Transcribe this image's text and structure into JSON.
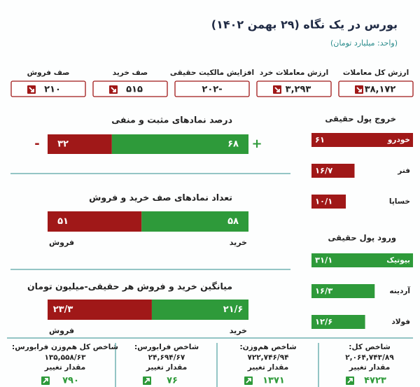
{
  "header": {
    "title": "بورس در یک نگاه (۲۹ بهمن ۱۴۰۲)",
    "subtitle": "(واحد: میلیارد تومان)"
  },
  "summary": [
    {
      "label": "ارزش کل معاملات",
      "value": "۳۸,۱۷۲",
      "trend": "down"
    },
    {
      "label": "ارزش معاملات خرد",
      "value": "۳,۲۹۳",
      "trend": "down"
    },
    {
      "label": "افزایش مالکیت حقیقی",
      "value": "-۲۰۲",
      "trend": "none"
    },
    {
      "label": "صف خرید",
      "value": "۵۱۵",
      "trend": "down"
    },
    {
      "label": "صف فروش",
      "value": "۲۱۰",
      "trend": "down"
    }
  ],
  "bars": [
    {
      "title": "درصد نمادهای مثبت و منفی",
      "positive": {
        "value": 68,
        "label": "۶۸",
        "sign": "+"
      },
      "negative": {
        "value": 32,
        "label": "۳۲",
        "sign": "-"
      }
    },
    {
      "title": "تعداد نمادهای صف خرید و فروش",
      "positive": {
        "value": 58,
        "label": "۵۸",
        "caption": "خرید"
      },
      "negative": {
        "value": 51,
        "label": "۵۱",
        "caption": "فروش"
      }
    },
    {
      "title": "میانگین خرید و فروش هر حقیقی-میلیون تومان",
      "positive": {
        "value": 21.6,
        "label": "۲۱/۶",
        "caption": "خرید"
      },
      "negative": {
        "value": 23.3,
        "label": "۲۳/۳",
        "caption": "فروش"
      }
    }
  ],
  "outflow": {
    "title": "خروج پول حقیقی",
    "color": "#a01818",
    "items": [
      {
        "name": "خودرو",
        "value": 61,
        "label": "۶۱"
      },
      {
        "name": "فنر",
        "value": 16.7,
        "label": "۱۶/۷"
      },
      {
        "name": "خساپا",
        "value": 10.1,
        "label": "۱۰/۱"
      }
    ]
  },
  "inflow": {
    "title": "ورود پول حقیقی",
    "color": "#2e9a3a",
    "items": [
      {
        "name": "بیوتیک",
        "value": 31.1,
        "label": "۳۱/۱"
      },
      {
        "name": "آردینه",
        "value": 16.3,
        "label": "۱۶/۳"
      },
      {
        "name": "فولاد",
        "value": 12.6,
        "label": "۱۲/۶"
      }
    ]
  },
  "indices": [
    {
      "name": "شاخص کل:",
      "value": "۲,۰۶۴,۷۴۳/۸۹",
      "change_label": "مقدار تغییر",
      "change": "۴۷۲۳"
    },
    {
      "name": "شاخص هم‌وزن:",
      "value": "۷۲۲,۷۴۶/۹۴",
      "change_label": "مقدار تغییر",
      "change": "۱۳۷۱"
    },
    {
      "name": "شاخص فرابورس:",
      "value": "۲۴,۶۹۴/۶۷",
      "change_label": "مقدار تغییر",
      "change": "۷۶"
    },
    {
      "name": "شاخص کل هم‌وزن فرابورس:",
      "value": "۱۳۵,۵۵۸/۶۳",
      "change_label": "مقدار تغییر",
      "change": "۷۹۰"
    }
  ]
}
